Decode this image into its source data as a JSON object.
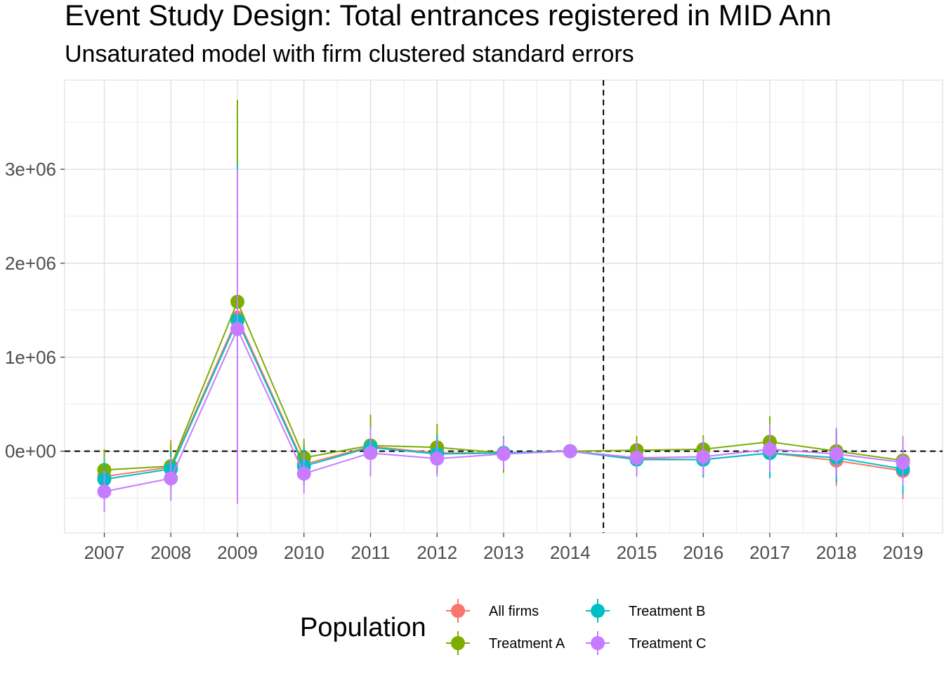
{
  "title": "Event Study Design: Total entrances registered in MID Ann",
  "subtitle": "Unsaturated model with firm clustered standard errors",
  "chart_data": {
    "type": "line",
    "title": "Event Study Design: Total entrances registered in MID Ann",
    "subtitle": "Unsaturated model with firm clustered standard errors",
    "xlabel": "",
    "ylabel": "",
    "categories": [
      "2007",
      "2008",
      "2009",
      "2010",
      "2011",
      "2012",
      "2013",
      "2014",
      "2015",
      "2016",
      "2017",
      "2018",
      "2019"
    ],
    "y_ticks": [
      0,
      1000000,
      2000000,
      3000000
    ],
    "y_tick_labels": [
      "0e+00",
      "1e+06",
      "2e+06",
      "3e+06"
    ],
    "ylim": [
      -870000,
      3950000
    ],
    "grid": true,
    "reference_lines": {
      "y": 0,
      "x_between": [
        "2014",
        "2015"
      ]
    },
    "legend": {
      "title": "Population",
      "position": "bottom"
    },
    "series": [
      {
        "name": "All firms",
        "color": "#F8766D",
        "values": [
          -270000,
          -170000,
          1420000,
          -140000,
          50000,
          -20000,
          -20000,
          0,
          -80000,
          -90000,
          -20000,
          -100000,
          -210000
        ],
        "lower": [
          -480000,
          -360000,
          450000,
          -350000,
          -170000,
          -220000,
          -160000,
          0,
          -260000,
          -280000,
          -260000,
          -370000,
          -510000
        ],
        "upper": [
          -60000,
          120000,
          2800000,
          70000,
          270000,
          180000,
          120000,
          0,
          100000,
          100000,
          220000,
          170000,
          90000
        ]
      },
      {
        "name": "Treatment A",
        "color": "#7CAE00",
        "values": [
          -200000,
          -160000,
          1590000,
          -70000,
          60000,
          40000,
          -20000,
          0,
          10000,
          20000,
          100000,
          0,
          -100000
        ],
        "lower": [
          -430000,
          -410000,
          -550000,
          -260000,
          -220000,
          -220000,
          -230000,
          0,
          -150000,
          -150000,
          -170000,
          -230000,
          -360000
        ],
        "upper": [
          20000,
          80000,
          3740000,
          130000,
          390000,
          290000,
          160000,
          0,
          160000,
          170000,
          370000,
          230000,
          160000
        ]
      },
      {
        "name": "Treatment B",
        "color": "#00BFC4",
        "values": [
          -300000,
          -190000,
          1390000,
          -160000,
          40000,
          -30000,
          -20000,
          0,
          -90000,
          -90000,
          -20000,
          -70000,
          -190000
        ],
        "lower": [
          -520000,
          -380000,
          -350000,
          -360000,
          -200000,
          -240000,
          -190000,
          0,
          -260000,
          -280000,
          -290000,
          -330000,
          -460000
        ],
        "upper": [
          -80000,
          0,
          3060000,
          50000,
          260000,
          170000,
          150000,
          0,
          80000,
          100000,
          250000,
          190000,
          80000
        ]
      },
      {
        "name": "Treatment C",
        "color": "#C77CFF",
        "values": [
          -430000,
          -290000,
          1300000,
          -240000,
          -20000,
          -80000,
          -30000,
          0,
          -70000,
          -60000,
          20000,
          -30000,
          -120000
        ],
        "lower": [
          -650000,
          -530000,
          -560000,
          -450000,
          -270000,
          -270000,
          -200000,
          0,
          -270000,
          -260000,
          -220000,
          -270000,
          -370000
        ],
        "upper": [
          -210000,
          -60000,
          3000000,
          -20000,
          250000,
          110000,
          140000,
          0,
          100000,
          130000,
          280000,
          250000,
          150000
        ]
      }
    ]
  }
}
